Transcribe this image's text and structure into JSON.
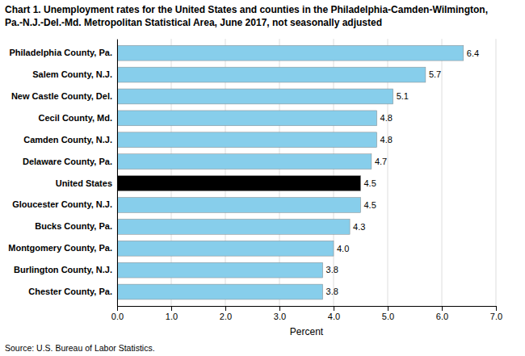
{
  "chart_data": {
    "type": "bar",
    "orientation": "horizontal",
    "title": "Chart 1. Unemployment rates for the United States and counties in the Philadelphia-Camden-Wilmington,\nPa.-N.J.-Del.-Md. Metropolitan Statistical Area, June 2017, not seasonally adjusted",
    "categories": [
      "Philadelphia County, Pa.",
      "Salem County, N.J.",
      "New Castle County, Del.",
      "Cecil County, Md.",
      "Camden County, N.J.",
      "Delaware County, Pa.",
      "United States",
      "Gloucester County, N.J.",
      "Bucks County, Pa.",
      "Montgomery County, Pa.",
      "Burlington County, N.J.",
      "Chester County, Pa."
    ],
    "values": [
      6.4,
      5.7,
      5.1,
      4.8,
      4.8,
      4.7,
      4.5,
      4.5,
      4.3,
      4.0,
      3.8,
      3.8
    ],
    "value_labels": [
      "6.4",
      "5.7",
      "5.1",
      "4.8",
      "4.8",
      "4.7",
      "4.5",
      "4.5",
      "4.3",
      "4.0",
      "3.8",
      "3.8"
    ],
    "colors": [
      "#87CEEB",
      "#87CEEB",
      "#87CEEB",
      "#87CEEB",
      "#87CEEB",
      "#87CEEB",
      "#000000",
      "#87CEEB",
      "#87CEEB",
      "#87CEEB",
      "#87CEEB",
      "#87CEEB"
    ],
    "data_labels": true,
    "xlim": [
      0.0,
      7.0
    ],
    "xticks": [
      {
        "value": 0,
        "label": "0.0"
      },
      {
        "value": 1,
        "label": "1.0"
      },
      {
        "value": 2,
        "label": "2.0"
      },
      {
        "value": 3,
        "label": "3.0"
      },
      {
        "value": 4,
        "label": "4.0"
      },
      {
        "value": 5,
        "label": "5.0"
      },
      {
        "value": 6,
        "label": "6.0"
      },
      {
        "value": 7,
        "label": "7.0"
      }
    ],
    "xlabel": "Percent",
    "grid": true,
    "source": "Source: U.S. Bureau of Labor Statistics."
  }
}
